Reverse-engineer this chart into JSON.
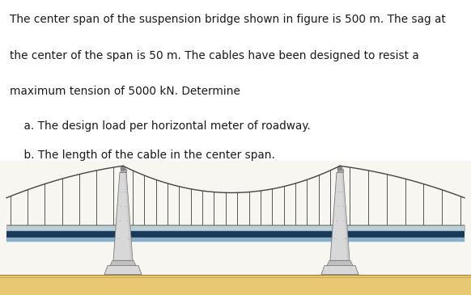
{
  "text_lines": [
    "The center span of the suspension bridge shown in figure is 500 m. The sag at",
    "the center of the span is 50 m. The cables have been designed to resist a",
    "maximum tension of 5000 kN. Determine",
    "    a. The design load per horizontal meter of roadway.",
    "    b. The length of the cable in the center span."
  ],
  "bg_color": "#ffffff",
  "text_color": "#1a1a1a",
  "font_size": 9.8,
  "tower_color_light": "#d8d8d8",
  "tower_color_mid": "#c0c0c0",
  "tower_outline": "#777777",
  "cable_color": "#444444",
  "deck_top_color": "#b8cfd8",
  "deck_mid_color": "#1a3a5c",
  "deck_bot_color": "#8ab0c8",
  "ground_color_top": "#e8c870",
  "ground_color_bot": "#c8a040",
  "suspender_color": "#555555",
  "sky_color": "#f8f6f0",
  "bridge_bg": "#f0ede5"
}
